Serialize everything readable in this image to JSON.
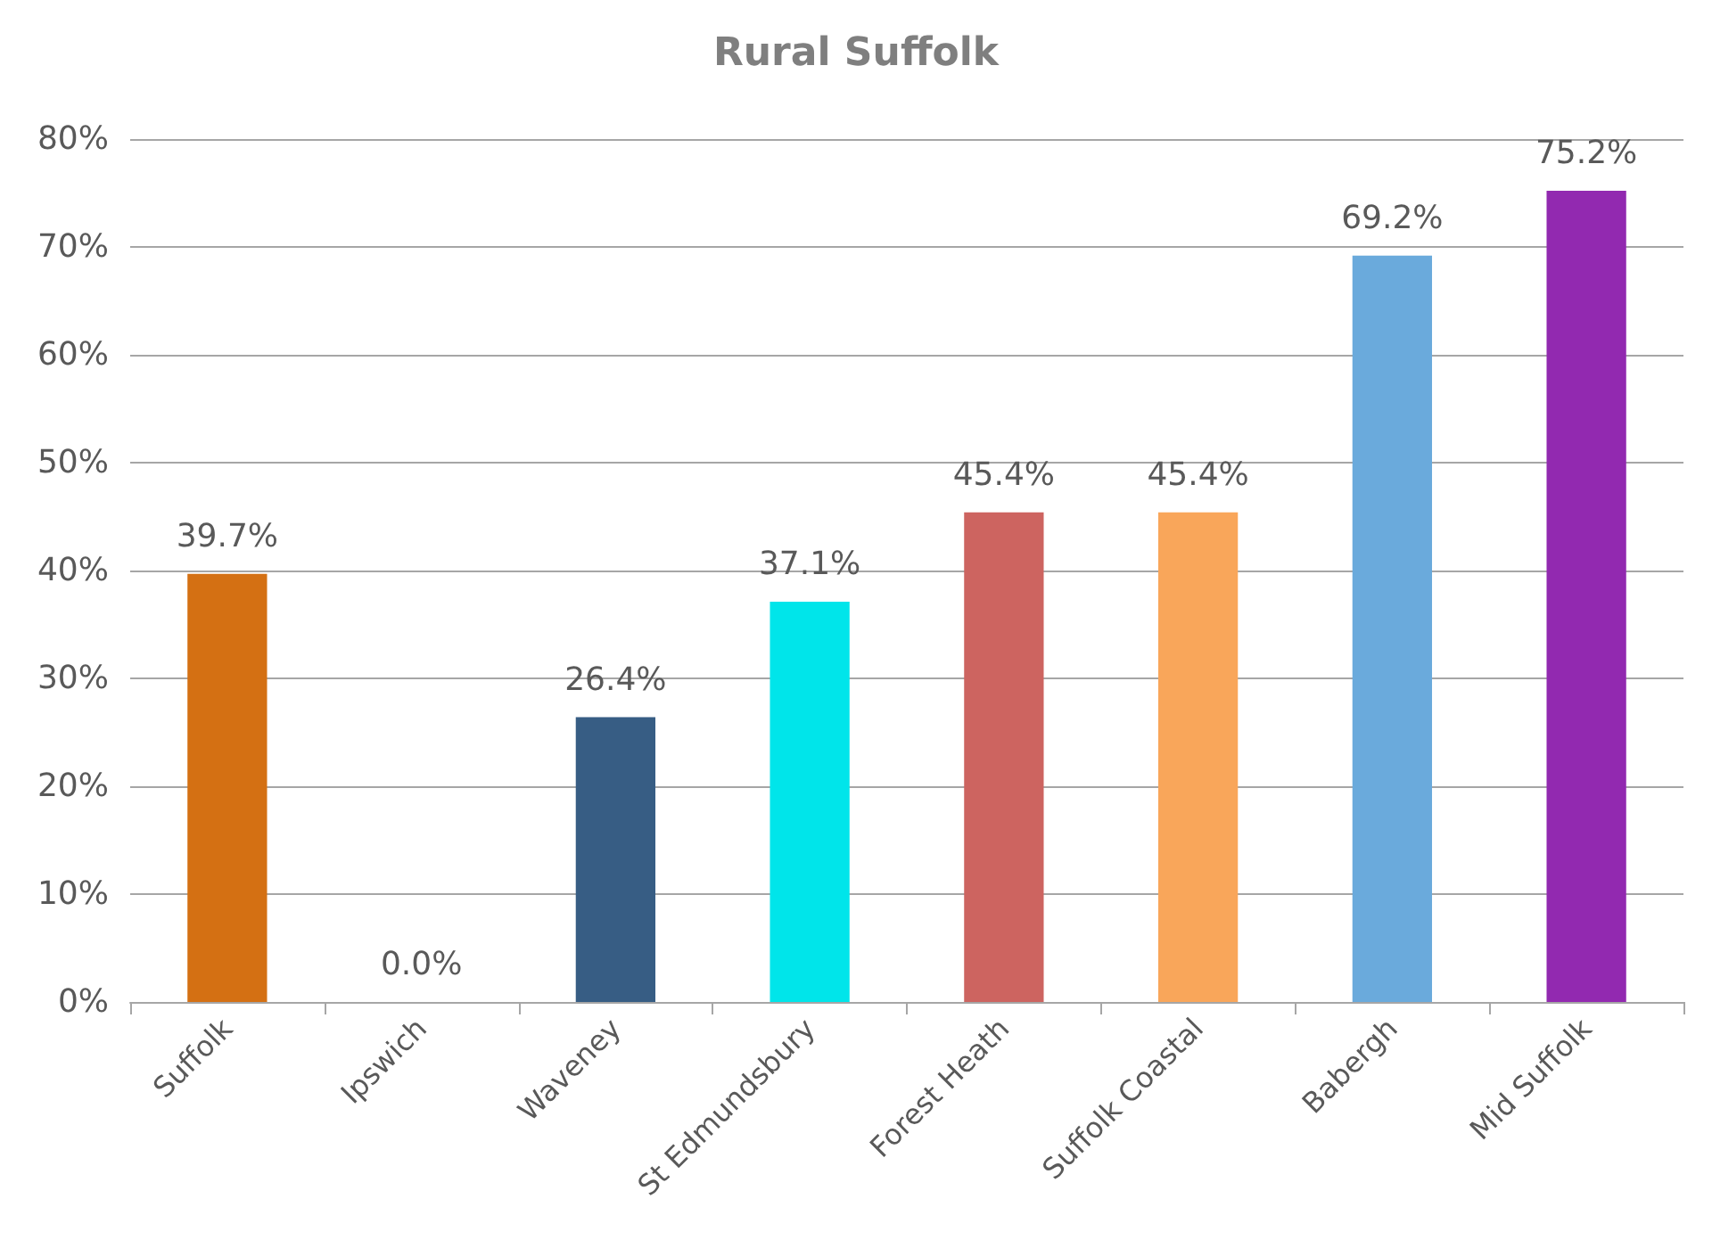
{
  "chart_data": {
    "type": "bar",
    "title": "Rural Suffolk",
    "categories": [
      "Suffolk",
      "Ipswich",
      "Waveney",
      "St Edmundsbury",
      "Forest Heath",
      "Suffolk Coastal",
      "Babergh",
      "Mid Suffolk"
    ],
    "values": [
      39.7,
      0.0,
      26.4,
      37.1,
      45.4,
      45.4,
      69.2,
      75.2
    ],
    "colors": [
      "#d47013",
      null,
      "#375d84",
      "#00e5ea",
      "#cd6460",
      "#f9a65a",
      "#6aaadc",
      "#9229b0"
    ],
    "value_labels": [
      "39.7%",
      "0.0%",
      "26.4%",
      "37.1%",
      "45.4%",
      "45.4%",
      "69.2%",
      "75.2%"
    ],
    "ylim": [
      0,
      80
    ],
    "yticks": [
      {
        "value": 0,
        "label": "0%"
      },
      {
        "value": 10,
        "label": "10%"
      },
      {
        "value": 20,
        "label": "20%"
      },
      {
        "value": 30,
        "label": "30%"
      },
      {
        "value": 40,
        "label": "40%"
      },
      {
        "value": 50,
        "label": "50%"
      },
      {
        "value": 60,
        "label": "60%"
      },
      {
        "value": 70,
        "label": "70%"
      },
      {
        "value": 80,
        "label": "80%"
      }
    ],
    "grid": "y"
  }
}
